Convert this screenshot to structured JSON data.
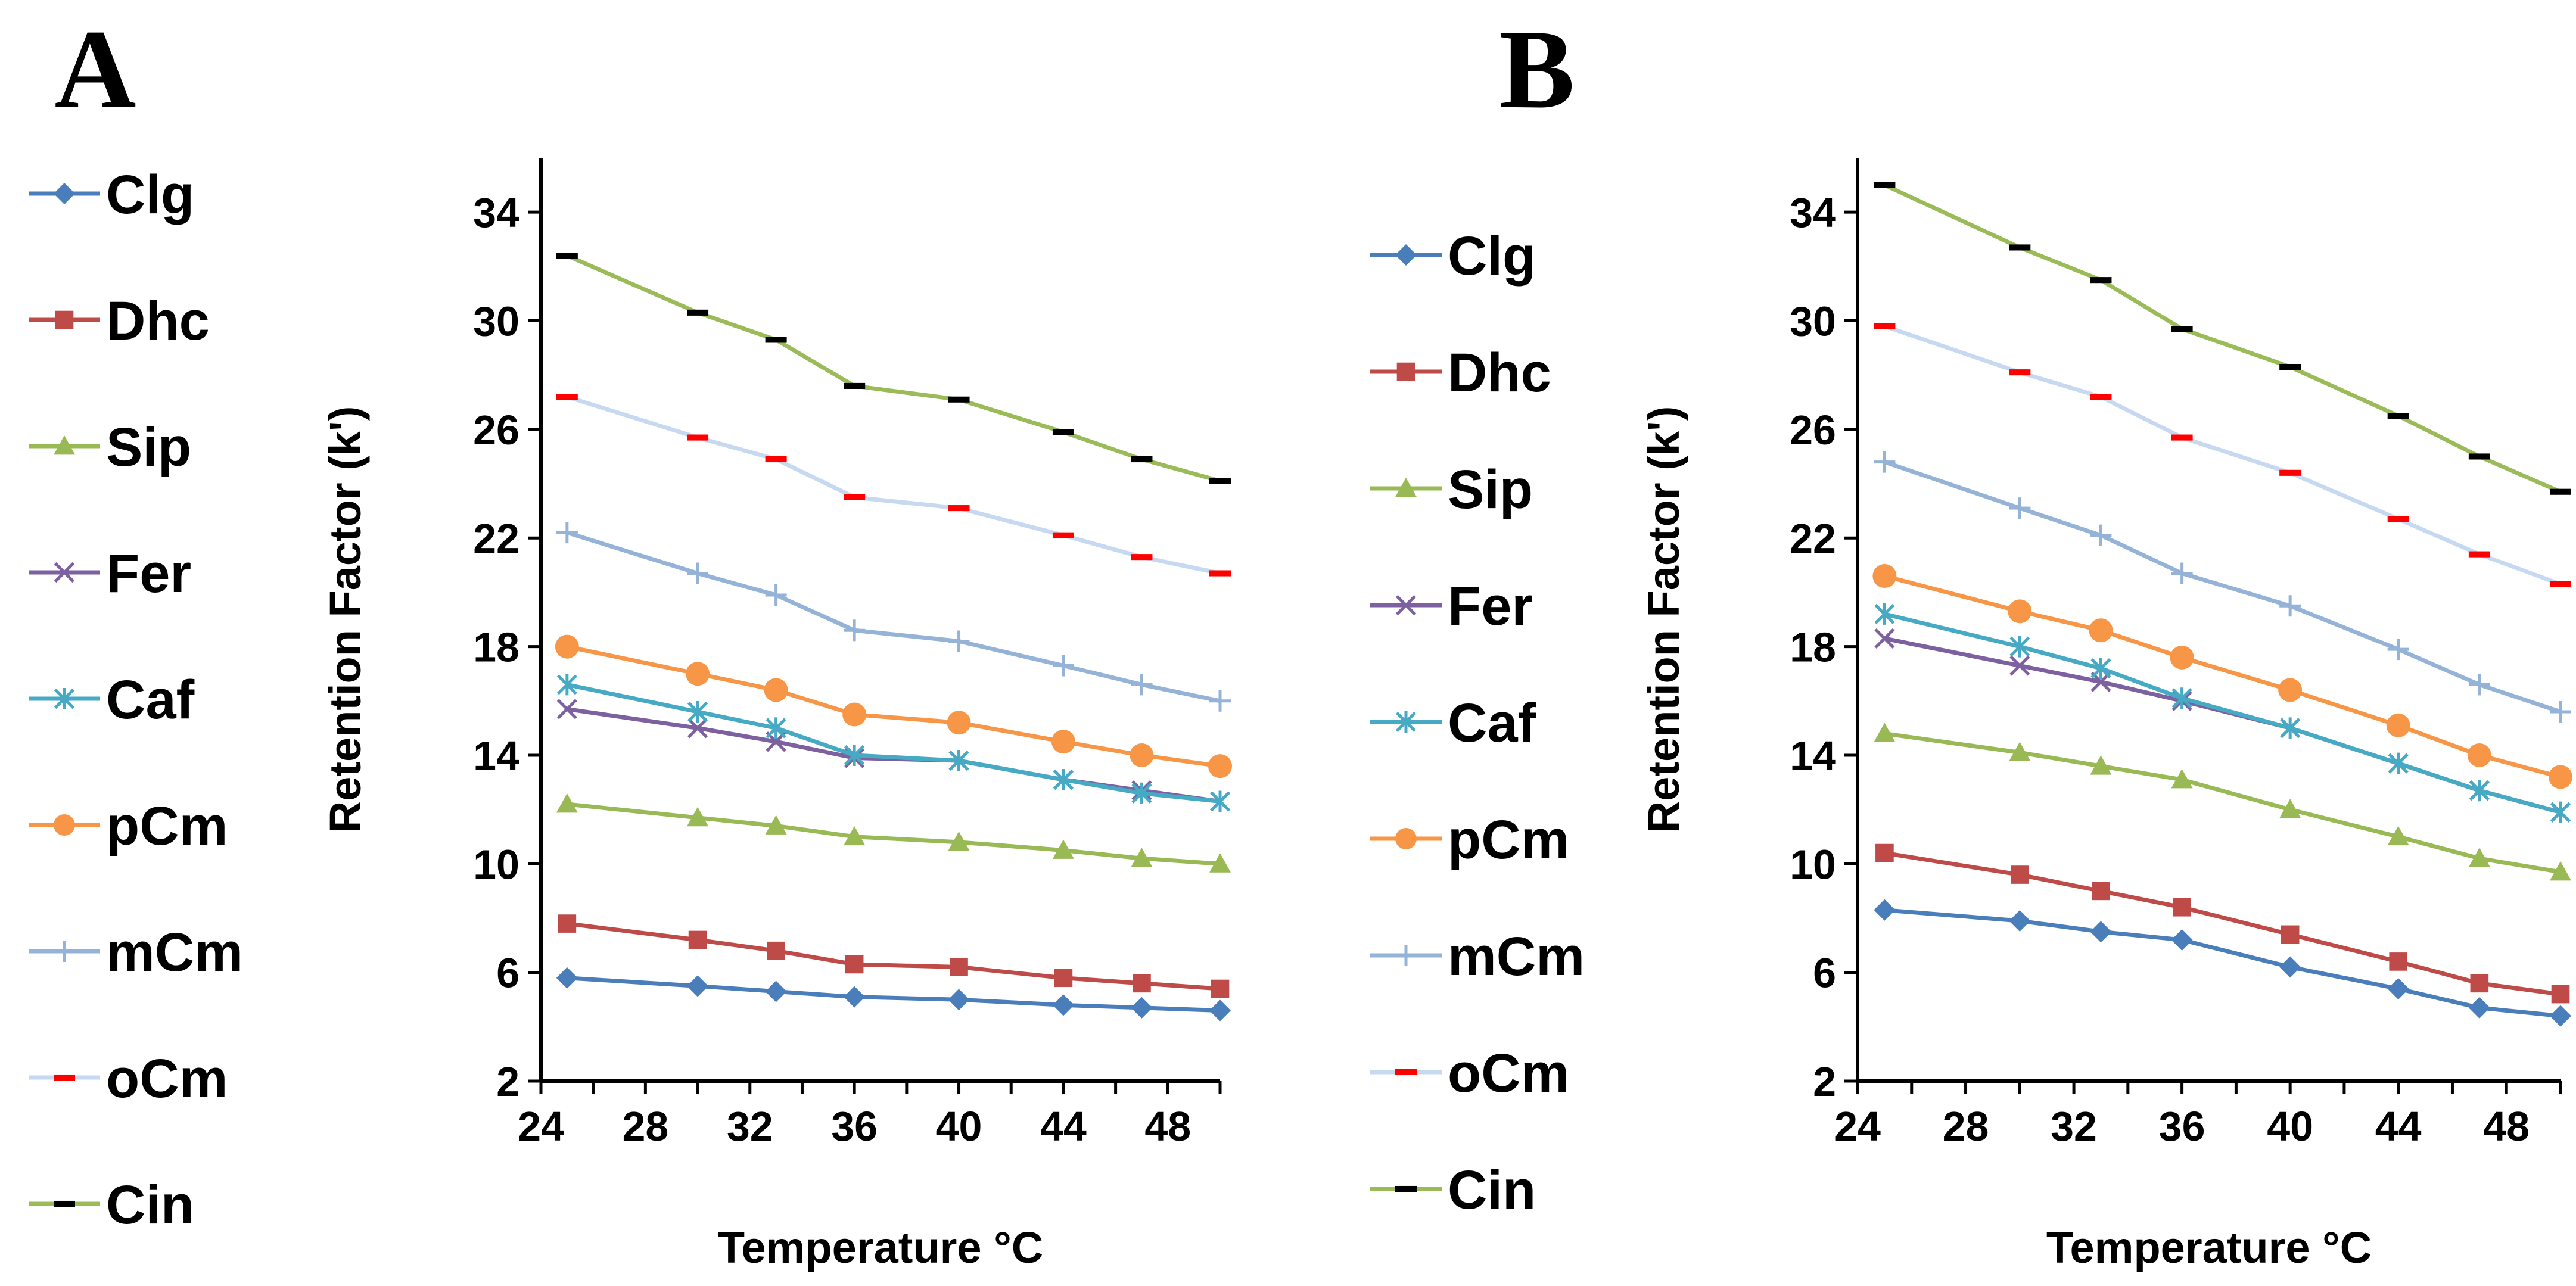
{
  "chart_data": [
    {
      "type": "line",
      "panel": "A",
      "xlabel": "Temperature °C",
      "ylabel": "Retention Factor (k')",
      "xlim": [
        24,
        50
      ],
      "ylim": [
        2,
        36
      ],
      "xticks": [
        24,
        28,
        32,
        36,
        40,
        44,
        48
      ],
      "yticks": [
        2,
        6,
        10,
        14,
        18,
        22,
        26,
        30,
        34
      ],
      "x": [
        25,
        30,
        33,
        36,
        40,
        44,
        47,
        50
      ],
      "series": [
        {
          "name": "Clg",
          "color": "#4a7ebb",
          "marker": "diamond",
          "values": [
            5.8,
            5.5,
            5.3,
            5.1,
            5.0,
            4.8,
            4.7,
            4.6
          ]
        },
        {
          "name": "Dhc",
          "color": "#be4b48",
          "marker": "square",
          "values": [
            7.8,
            7.2,
            6.8,
            6.3,
            6.2,
            5.8,
            5.6,
            5.4
          ]
        },
        {
          "name": "Sip",
          "color": "#98b954",
          "marker": "triangle",
          "values": [
            12.2,
            11.7,
            11.4,
            11.0,
            10.8,
            10.5,
            10.2,
            10.0
          ]
        },
        {
          "name": "Fer",
          "color": "#7d60a0",
          "marker": "x",
          "values": [
            15.7,
            15.0,
            14.5,
            13.9,
            13.8,
            13.1,
            12.7,
            12.3
          ]
        },
        {
          "name": "Caf",
          "color": "#46aac5",
          "marker": "star",
          "values": [
            16.6,
            15.6,
            15.0,
            14.0,
            13.8,
            13.1,
            12.6,
            12.3
          ]
        },
        {
          "name": "pCm",
          "color": "#f79646",
          "marker": "circle",
          "values": [
            18.0,
            17.0,
            16.4,
            15.5,
            15.2,
            14.5,
            14.0,
            13.6
          ]
        },
        {
          "name": "mCm",
          "color": "#95b3d7",
          "marker": "plus",
          "values": [
            22.2,
            20.7,
            19.9,
            18.6,
            18.2,
            17.3,
            16.6,
            16.0
          ]
        },
        {
          "name": "oCm",
          "color": "#c6d9f1",
          "marker": "dash",
          "marker_color": "#ff0000",
          "values": [
            27.2,
            25.7,
            24.9,
            23.5,
            23.1,
            22.1,
            21.3,
            20.7
          ]
        },
        {
          "name": "Cin",
          "color": "#9bbb59",
          "marker": "dash",
          "marker_color": "#000000",
          "values": [
            32.4,
            30.3,
            29.3,
            27.6,
            27.1,
            25.9,
            24.9,
            24.1
          ]
        }
      ]
    },
    {
      "type": "line",
      "panel": "B",
      "xlabel": "Temperature °C",
      "ylabel": "Retention Factor (k')",
      "xlim": [
        24,
        50
      ],
      "ylim": [
        2,
        36
      ],
      "xticks": [
        24,
        28,
        32,
        36,
        40,
        44,
        48
      ],
      "yticks": [
        2,
        6,
        10,
        14,
        18,
        22,
        26,
        30,
        34
      ],
      "x": [
        25,
        30,
        33,
        36,
        40,
        44,
        47,
        50
      ],
      "series": [
        {
          "name": "Clg",
          "color": "#4a7ebb",
          "marker": "diamond",
          "values": [
            8.3,
            7.9,
            7.5,
            7.2,
            6.2,
            5.4,
            4.7,
            4.4
          ]
        },
        {
          "name": "Dhc",
          "color": "#be4b48",
          "marker": "square",
          "values": [
            10.4,
            9.6,
            9.0,
            8.4,
            7.4,
            6.4,
            5.6,
            5.2
          ]
        },
        {
          "name": "Sip",
          "color": "#98b954",
          "marker": "triangle",
          "values": [
            14.8,
            14.1,
            13.6,
            13.1,
            12.0,
            11.0,
            10.2,
            9.7
          ]
        },
        {
          "name": "Fer",
          "color": "#7d60a0",
          "marker": "x",
          "values": [
            18.3,
            17.3,
            16.7,
            16.0,
            15.0,
            13.7,
            12.7,
            11.9
          ]
        },
        {
          "name": "Caf",
          "color": "#46aac5",
          "marker": "star",
          "values": [
            19.2,
            18.0,
            17.2,
            16.1,
            15.0,
            13.7,
            12.7,
            11.9
          ]
        },
        {
          "name": "pCm",
          "color": "#f79646",
          "marker": "circle",
          "values": [
            20.6,
            19.3,
            18.6,
            17.6,
            16.4,
            15.1,
            14.0,
            13.2
          ]
        },
        {
          "name": "mCm",
          "color": "#95b3d7",
          "marker": "plus",
          "values": [
            24.8,
            23.1,
            22.1,
            20.7,
            19.5,
            17.9,
            16.6,
            15.6
          ]
        },
        {
          "name": "oCm",
          "color": "#c6d9f1",
          "marker": "dash",
          "marker_color": "#ff0000",
          "values": [
            29.8,
            28.1,
            27.2,
            25.7,
            24.4,
            22.7,
            21.4,
            20.3
          ]
        },
        {
          "name": "Cin",
          "color": "#9bbb59",
          "marker": "dash",
          "marker_color": "#000000",
          "values": [
            35.0,
            32.7,
            31.5,
            29.7,
            28.3,
            26.5,
            25.0,
            23.7
          ]
        }
      ]
    }
  ]
}
